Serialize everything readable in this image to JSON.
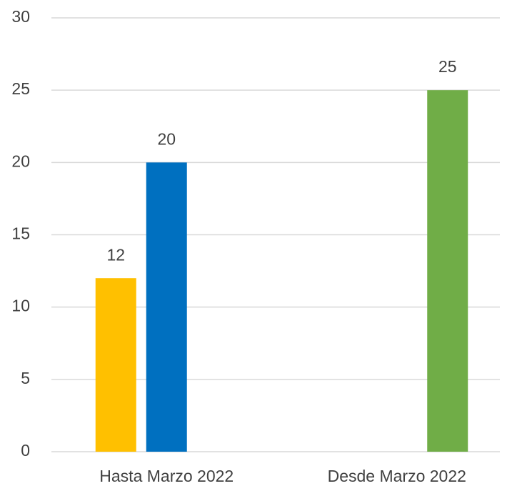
{
  "chart_data": {
    "type": "bar",
    "categories": [
      "Hasta Marzo 2022",
      "Desde Marzo 2022"
    ],
    "series": [
      {
        "color": "#ffc000",
        "values": [
          12,
          null
        ]
      },
      {
        "color": "#0070c0",
        "values": [
          20,
          null
        ]
      },
      {
        "color": "#70ad47",
        "values": [
          null,
          25
        ]
      }
    ],
    "ylim": [
      0,
      30
    ],
    "yticks": [
      0,
      5,
      10,
      15,
      20,
      25,
      30
    ],
    "grid": true
  }
}
